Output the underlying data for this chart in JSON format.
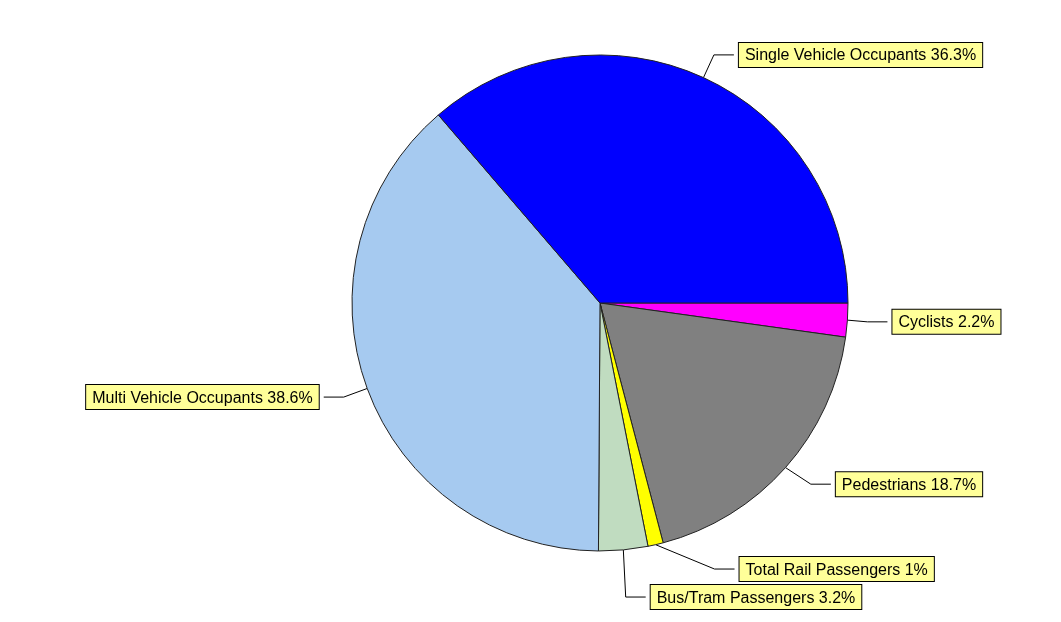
{
  "chart_data": {
    "type": "pie",
    "categories": [
      "Cyclists",
      "Pedestrians",
      "Total Rail Passengers",
      "Bus/Tram Passengers",
      "Multi Vehicle Occupants",
      "Single Vehicle Occupants"
    ],
    "values": [
      2.2,
      18.7,
      1,
      3.2,
      38.6,
      36.3
    ],
    "value_labels": [
      "2.2%",
      "18.7%",
      "1%",
      "3.2%",
      "38.6%",
      "36.3%"
    ],
    "colors": [
      "#ff00ff",
      "#808080",
      "#ffff00",
      "#c0dcc0",
      "#a6caf0",
      "#0000ff"
    ],
    "legend": false
  }
}
